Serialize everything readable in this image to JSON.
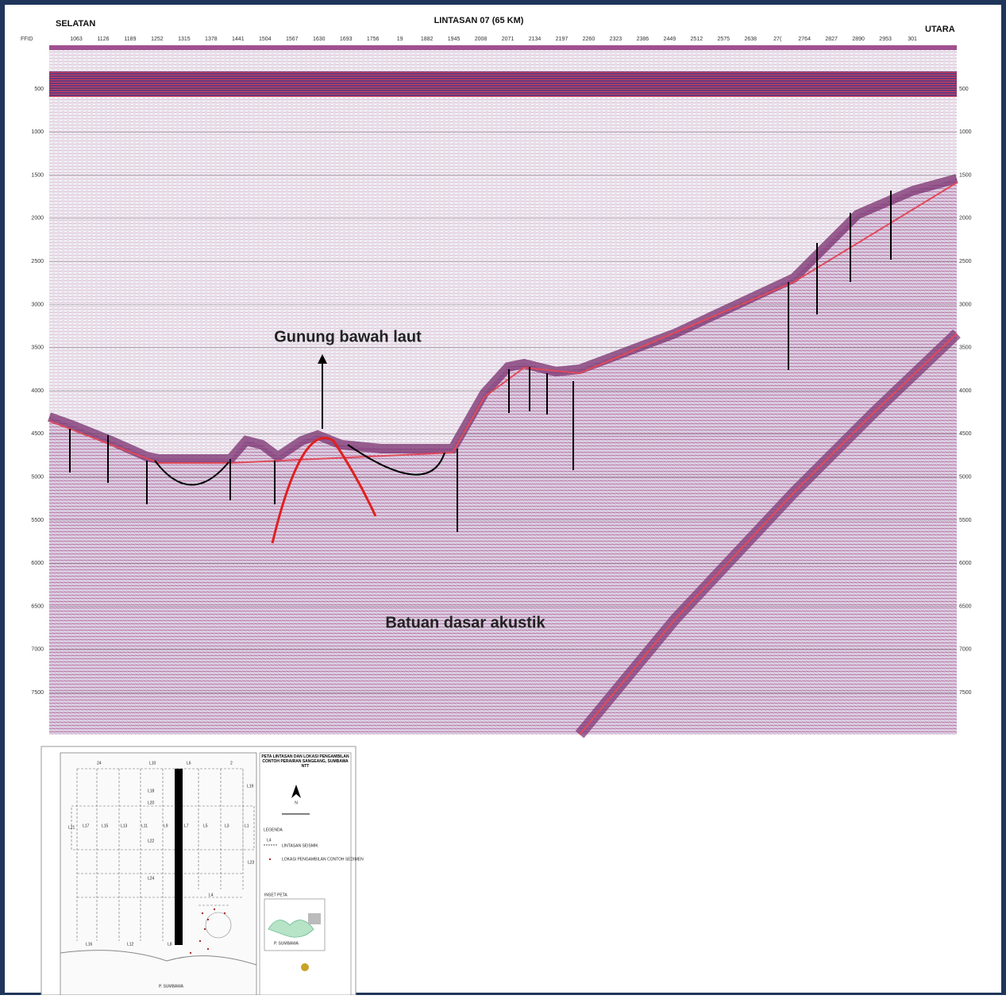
{
  "header": {
    "left": "SELATAN",
    "title": "LINTASAN 07 (65 KM)",
    "right": "UTARA",
    "axis_label": "FFID"
  },
  "ffid_labels": [
    "1063",
    "1126",
    "1189",
    "1252",
    "1315",
    "1378",
    "1441",
    "1504",
    "1567",
    "1630",
    "1693",
    "1756",
    "19",
    "1882",
    "1945",
    "2008",
    "2071",
    "2134",
    "2197",
    "2260",
    "2323",
    "2386",
    "2449",
    "2512",
    "2575",
    "2638",
    "27(",
    "2764",
    "2827",
    "2890",
    "2953",
    "301"
  ],
  "depth_labels": [
    "500",
    "1000",
    "1500",
    "2000",
    "2500",
    "3000",
    "3500",
    "4000",
    "4500",
    "5000",
    "5500",
    "6000",
    "6500",
    "7000",
    "7500"
  ],
  "annotations": {
    "seamount": "Gunung bawah laut",
    "basement": "Batuan dasar akustik"
  },
  "map": {
    "title": "PETA LINTASAN DAN LOKASI PENGAMBILAN CONTOH PERAIRAN SANGEANG, SUMBAWA NTT",
    "north": "N",
    "legend_title": "LEGENDA",
    "legend_line_label": "L4",
    "legend_line": "LINTASAN SEISMIK",
    "legend_sample": "LOKASI PENGAMBILAN CONTOH SEDIMEN",
    "inset_title": "INSET PETA",
    "inset_island": "P. SUMBAWA",
    "island": "P. SUMBAWA",
    "lines": {
      "top": [
        "24",
        "L10",
        "L6",
        "2"
      ],
      "middle": [
        "L21",
        "L17",
        "L15",
        "L13",
        "L11",
        "L9",
        "L7",
        "L5",
        "L3",
        "L1"
      ],
      "east": [
        "L19",
        "L23"
      ],
      "cross": [
        "L18",
        "L20",
        "L22",
        "L24",
        "L4"
      ],
      "bottom": [
        "L16",
        "L12",
        "L8"
      ]
    }
  }
}
